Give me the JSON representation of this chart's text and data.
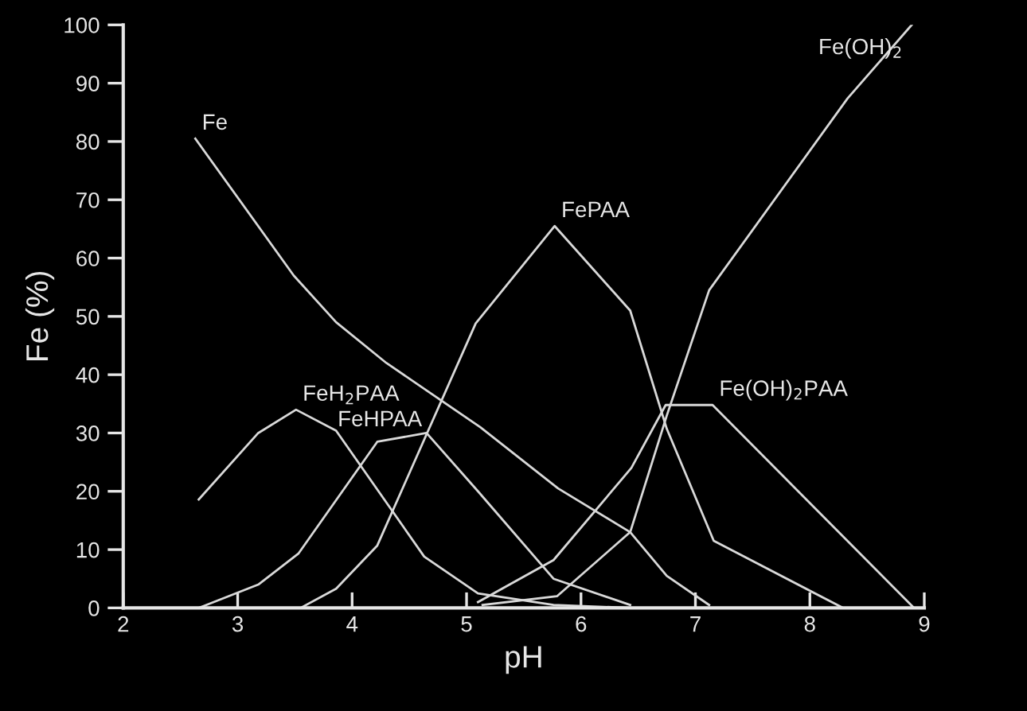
{
  "chart_data": {
    "type": "line",
    "xlabel": "pH",
    "ylabel": "Fe (%)",
    "xlim": [
      2,
      9
    ],
    "xticks": [
      2,
      3,
      4,
      5,
      6,
      7,
      8,
      9
    ],
    "ylim": [
      0,
      100
    ],
    "yticks": [
      0,
      10,
      20,
      30,
      40,
      50,
      60,
      70,
      80,
      90,
      100
    ],
    "grid": false,
    "legend": false,
    "marker": "none",
    "line_style": "solid",
    "series": [
      {
        "name": "Fe",
        "color": "#d9d9d9",
        "x": [
          2.63,
          3.49,
          3.86,
          4.3,
          5.12,
          5.8,
          6.43,
          6.75,
          7.12
        ],
        "values": [
          80.5,
          57,
          49,
          42,
          31,
          20.5,
          13,
          5.5,
          0.5
        ]
      },
      {
        "name": "FeH$_{2}$PAA",
        "color": "#d9d9d9",
        "x": [
          2.66,
          3.18,
          3.51,
          3.86,
          4.63,
          5.1,
          5.76,
          6.43
        ],
        "values": [
          18.6,
          30,
          34,
          30.4,
          8.8,
          2.5,
          0.5,
          0
        ]
      },
      {
        "name": "FeHPAA",
        "color": "#d9d9d9",
        "x": [
          2.66,
          3.18,
          3.53,
          4.22,
          4.65,
          5.1,
          5.76,
          6.43
        ],
        "values": [
          0,
          4,
          9.3,
          28.5,
          30,
          20,
          5,
          0.5
        ]
      },
      {
        "name": "FePAA",
        "color": "#d9d9d9",
        "x": [
          3.55,
          3.86,
          4.22,
          5.08,
          5.77,
          6.43,
          6.75,
          7.16,
          8.29
        ],
        "values": [
          0,
          3.3,
          10.7,
          48.8,
          65.5,
          51,
          30.7,
          11.5,
          0
        ]
      },
      {
        "name": "Fe(OH)$_{2}$PAA",
        "color": "#d9d9d9",
        "x": [
          5.1,
          5.76,
          6.44,
          6.74,
          7.15,
          8.91
        ],
        "values": [
          1,
          8.2,
          24,
          34.8,
          34.8,
          0
        ]
      },
      {
        "name": "Fe(OH)$_{2}$",
        "color": "#d9d9d9",
        "x": [
          5.14,
          5.79,
          6.43,
          6.75,
          7.12,
          8.33,
          8.89
        ],
        "values": [
          0.5,
          2,
          13,
          33,
          54.5,
          87.4,
          100
        ]
      }
    ]
  }
}
